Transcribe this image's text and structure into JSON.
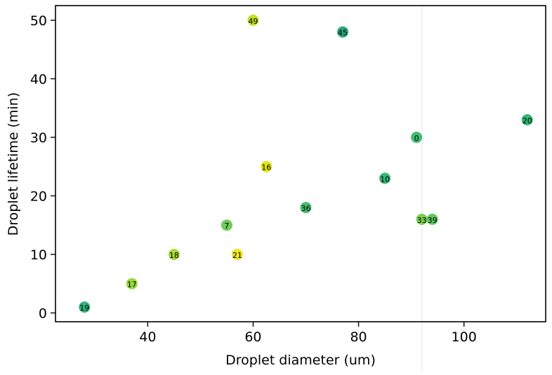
{
  "chart_data": {
    "type": "scatter",
    "title": "",
    "xlabel": "Droplet diameter (um)",
    "ylabel": "Droplet lifetime (min)",
    "xlim": [
      22.5,
      115.5
    ],
    "ylim": [
      -1.5,
      52.5
    ],
    "xticks": [
      40,
      60,
      80,
      100
    ],
    "yticks": [
      0,
      10,
      20,
      30,
      40,
      50
    ],
    "grid": false,
    "legend": "none",
    "points": [
      {
        "label": "49",
        "x": 60,
        "y": 50,
        "color": "#c2df23"
      },
      {
        "label": "45",
        "x": 77,
        "y": 48,
        "color": "#2ea57d"
      },
      {
        "label": "20",
        "x": 112,
        "y": 33,
        "color": "#35b779"
      },
      {
        "label": "0",
        "x": 91,
        "y": 30,
        "color": "#41bd72"
      },
      {
        "label": "16",
        "x": 62.5,
        "y": 25,
        "color": "#e4e419"
      },
      {
        "label": "10",
        "x": 85,
        "y": 23,
        "color": "#35b779"
      },
      {
        "label": "36",
        "x": 70,
        "y": 18,
        "color": "#44bf70"
      },
      {
        "label": "33",
        "x": 92,
        "y": 16,
        "color": "#7ad151"
      },
      {
        "label": "39",
        "x": 94,
        "y": 16,
        "color": "#5ec962"
      },
      {
        "label": "7",
        "x": 55,
        "y": 15,
        "color": "#6ece58"
      },
      {
        "label": "18",
        "x": 45,
        "y": 10,
        "color": "#a5db36"
      },
      {
        "label": "21",
        "x": 57,
        "y": 10,
        "color": "#f1e51d"
      },
      {
        "label": "17",
        "x": 37,
        "y": 5,
        "color": "#9bd93c"
      },
      {
        "label": "19",
        "x": 28,
        "y": 1,
        "color": "#2fb47c"
      }
    ]
  }
}
